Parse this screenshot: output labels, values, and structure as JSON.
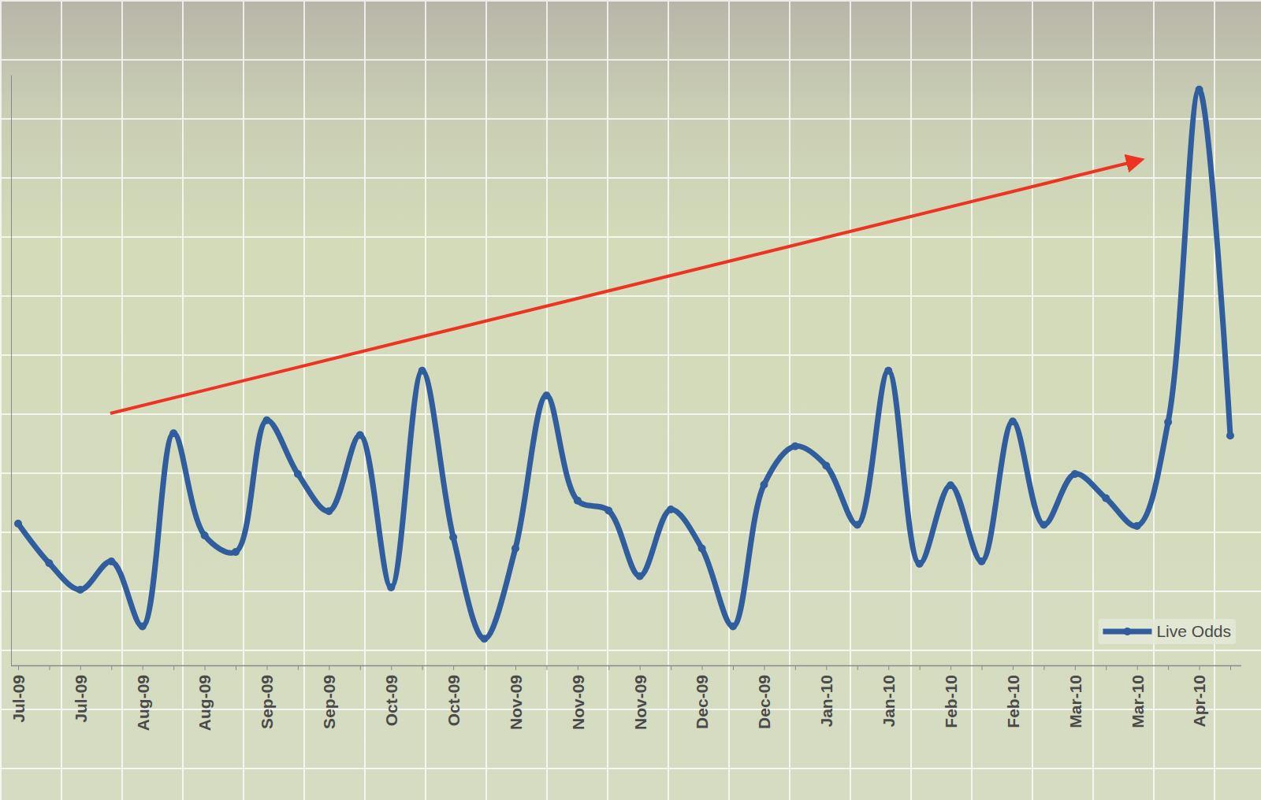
{
  "chart_data": {
    "type": "line",
    "categories": [
      "Jul-09",
      null,
      "Jul-09",
      null,
      "Aug-09",
      null,
      "Aug-09",
      null,
      "Sep-09",
      null,
      "Sep-09",
      null,
      "Oct-09",
      null,
      "Oct-09",
      null,
      "Nov-09",
      null,
      "Nov-09",
      null,
      "Nov-09",
      null,
      "Dec-09",
      null,
      "Dec-09",
      null,
      "Jan-10",
      null,
      "Jan-10",
      null,
      "Feb-10",
      null,
      "Feb-10",
      null,
      "Mar-10",
      null,
      "Mar-10",
      null,
      "Apr-10",
      null
    ],
    "series": [
      {
        "name": "Live Odds",
        "color": "#2f5d9e",
        "marker": "circle",
        "line_style": "solid",
        "values": [
          24,
          17.3,
          12.8,
          17.6,
          6.6,
          39.3,
          22,
          19.2,
          41.5,
          32.4,
          26.1,
          39,
          13.2,
          49.9,
          21.7,
          4.5,
          19.8,
          45.7,
          27.9,
          26.2,
          15.1,
          26.4,
          19.8,
          6.6,
          30.6,
          37.1,
          33.8,
          23.8,
          49.9,
          17.2,
          30.5,
          17.6,
          41.3,
          23.8,
          32.4,
          28.3,
          23.6,
          41.2,
          97.5,
          38.9
        ]
      }
    ],
    "ylim": [
      0,
      100
    ],
    "tick_labels": "x",
    "legend": "lower right"
  }
}
